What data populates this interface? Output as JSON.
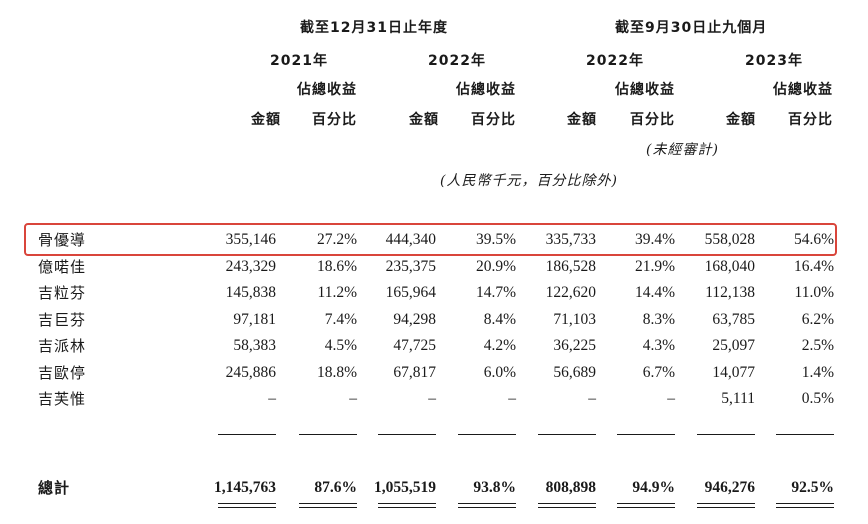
{
  "header": {
    "period_fy": "截至12月31日止年度",
    "period_9m": "截至9月30日止九個月",
    "years": [
      "2021年",
      "2022年",
      "2022年",
      "2023年"
    ],
    "pct_label_top": "佔總收益",
    "amount_label": "金額",
    "pct_label_bottom": "百分比",
    "unaudited": "(未經審計)",
    "unit_note": "(人民幣千元，百分比除外)"
  },
  "rows": [
    {
      "name": "骨優導",
      "values": [
        "355,146",
        "27.2%",
        "444,340",
        "39.5%",
        "335,733",
        "39.4%",
        "558,028",
        "54.6%"
      ]
    },
    {
      "name": "億喏佳",
      "values": [
        "243,329",
        "18.6%",
        "235,375",
        "20.9%",
        "186,528",
        "21.9%",
        "168,040",
        "16.4%"
      ]
    },
    {
      "name": "吉粒芬",
      "values": [
        "145,838",
        "11.2%",
        "165,964",
        "14.7%",
        "122,620",
        "14.4%",
        "112,138",
        "11.0%"
      ]
    },
    {
      "name": "吉巨芬",
      "values": [
        "97,181",
        "7.4%",
        "94,298",
        "8.4%",
        "71,103",
        "8.3%",
        "63,785",
        "6.2%"
      ]
    },
    {
      "name": "吉派林",
      "values": [
        "58,383",
        "4.5%",
        "47,725",
        "4.2%",
        "36,225",
        "4.3%",
        "25,097",
        "2.5%"
      ]
    },
    {
      "name": "吉歐停",
      "values": [
        "245,886",
        "18.8%",
        "67,817",
        "6.0%",
        "56,689",
        "6.7%",
        "14,077",
        "1.4%"
      ]
    },
    {
      "name": "吉芙惟",
      "values": [
        "–",
        "–",
        "–",
        "–",
        "–",
        "–",
        "5,111",
        "0.5%"
      ]
    }
  ],
  "total": {
    "name": "總計",
    "values": [
      "1,145,763",
      "87.6%",
      "1,055,519",
      "93.8%",
      "808,898",
      "94.9%",
      "946,276",
      "92.5%"
    ]
  },
  "colors": {
    "highlight": "#d9453b",
    "text": "#1a1a1a"
  }
}
